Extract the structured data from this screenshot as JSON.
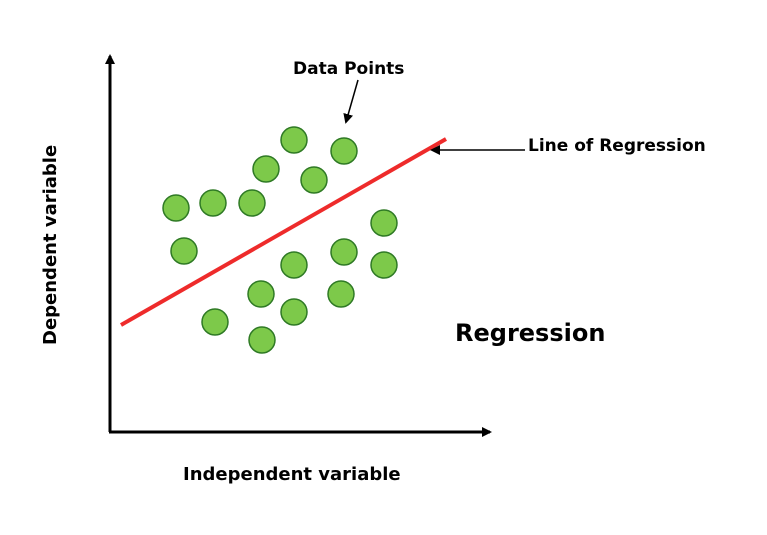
{
  "diagram": {
    "title": "Regression",
    "x_axis_label": "Independent variable",
    "y_axis_label": "Dependent variable",
    "annotations": {
      "data_points": "Data Points",
      "regression_line": "Line of Regression"
    },
    "colors": {
      "point_fill": "#7dc94a",
      "point_stroke": "#2f7a25",
      "regression_line": "#ee2b2b",
      "axis": "#000000"
    }
  }
}
